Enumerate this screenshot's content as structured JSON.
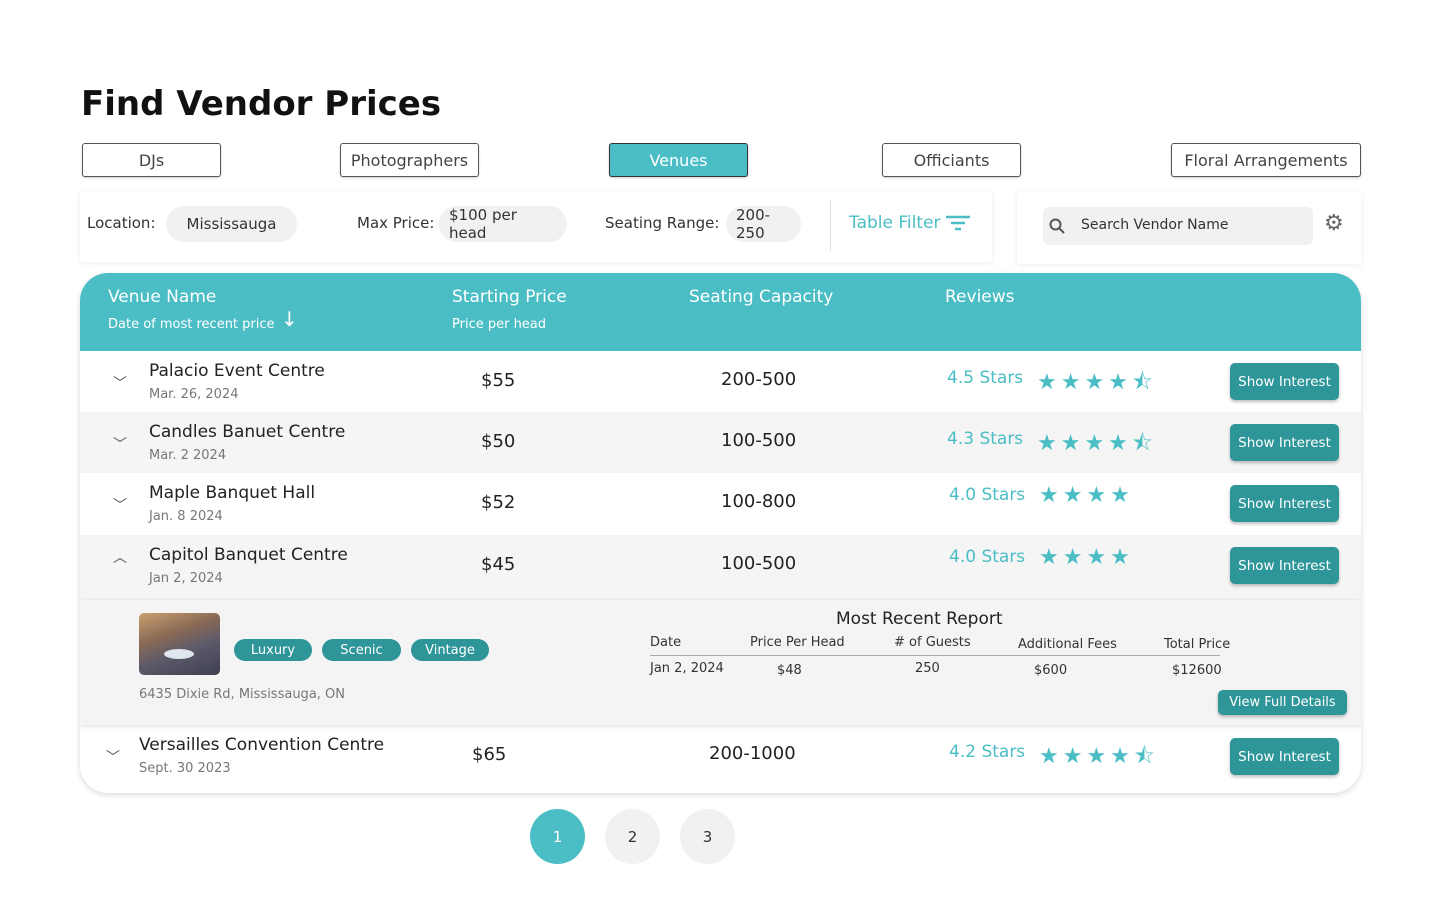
{
  "title": "Find Vendor Prices",
  "categories": [
    {
      "label": "DJs",
      "active": false
    },
    {
      "label": "Photographers",
      "active": false
    },
    {
      "label": "Venues",
      "active": true
    },
    {
      "label": "Officiants",
      "active": false
    },
    {
      "label": "Floral Arrangements",
      "active": false
    }
  ],
  "filters": {
    "location_label": "Location:",
    "location_value": "Mississauga",
    "max_price_label": "Max Price:",
    "max_price_value": "$100 per head",
    "seating_label": "Seating Range:",
    "seating_value": "200-250",
    "table_filter": "Table Filter"
  },
  "search": {
    "placeholder": "Search Vendor Name"
  },
  "table": {
    "headers": {
      "name": "Venue Name",
      "name_sub": "Date of most recent price",
      "price": "Starting Price",
      "price_sub": "Price per head",
      "capacity": "Seating Capacity",
      "reviews": "Reviews"
    },
    "rows": [
      {
        "name": "Palacio Event Centre",
        "date": "Mar. 26, 2024",
        "price": "$55",
        "capacity": "200-500",
        "reviews": "4.5 Stars",
        "stars_full": 4,
        "stars_half": 1,
        "expanded": false,
        "action": "Show Interest"
      },
      {
        "name": "Candles Banuet Centre",
        "date": "Mar. 2 2024",
        "price": "$50",
        "capacity": "100-500",
        "reviews": "4.3 Stars",
        "stars_full": 4,
        "stars_half": 1,
        "expanded": false,
        "action": "Show Interest"
      },
      {
        "name": "Maple Banquet Hall",
        "date": "Jan. 8 2024",
        "price": "$52",
        "capacity": "100-800",
        "reviews": "4.0 Stars",
        "stars_full": 4,
        "stars_half": 0,
        "expanded": false,
        "action": "Show Interest"
      },
      {
        "name": "Capitol Banquet Centre",
        "date": "Jan 2, 2024",
        "price": "$45",
        "capacity": "100-500",
        "reviews": "4.0 Stars",
        "stars_full": 4,
        "stars_half": 0,
        "expanded": true,
        "action": "Show Interest"
      },
      {
        "name": "Versailles Convention Centre",
        "date": "Sept. 30 2023",
        "price": "$65",
        "capacity": "200-1000",
        "reviews": "4.2 Stars",
        "stars_full": 4,
        "stars_half": 1,
        "expanded": false,
        "action": "Show Interest"
      }
    ],
    "detail": {
      "tags": [
        "Luxury",
        "Scenic",
        "Vintage"
      ],
      "address": "6435 Dixie Rd, Mississauga, ON",
      "report_title": "Most Recent Report",
      "report_headers": [
        "Date",
        "Price Per Head",
        "# of Guests",
        "Additional Fees",
        "Total Price"
      ],
      "report_values": [
        "Jan 2, 2024",
        "$48",
        "250",
        "$600",
        "$12600"
      ],
      "action": "View Full Details"
    }
  },
  "pagination": [
    "1",
    "2",
    "3"
  ],
  "colors": {
    "accent": "#4bbdc5",
    "button": "#2e9598"
  }
}
